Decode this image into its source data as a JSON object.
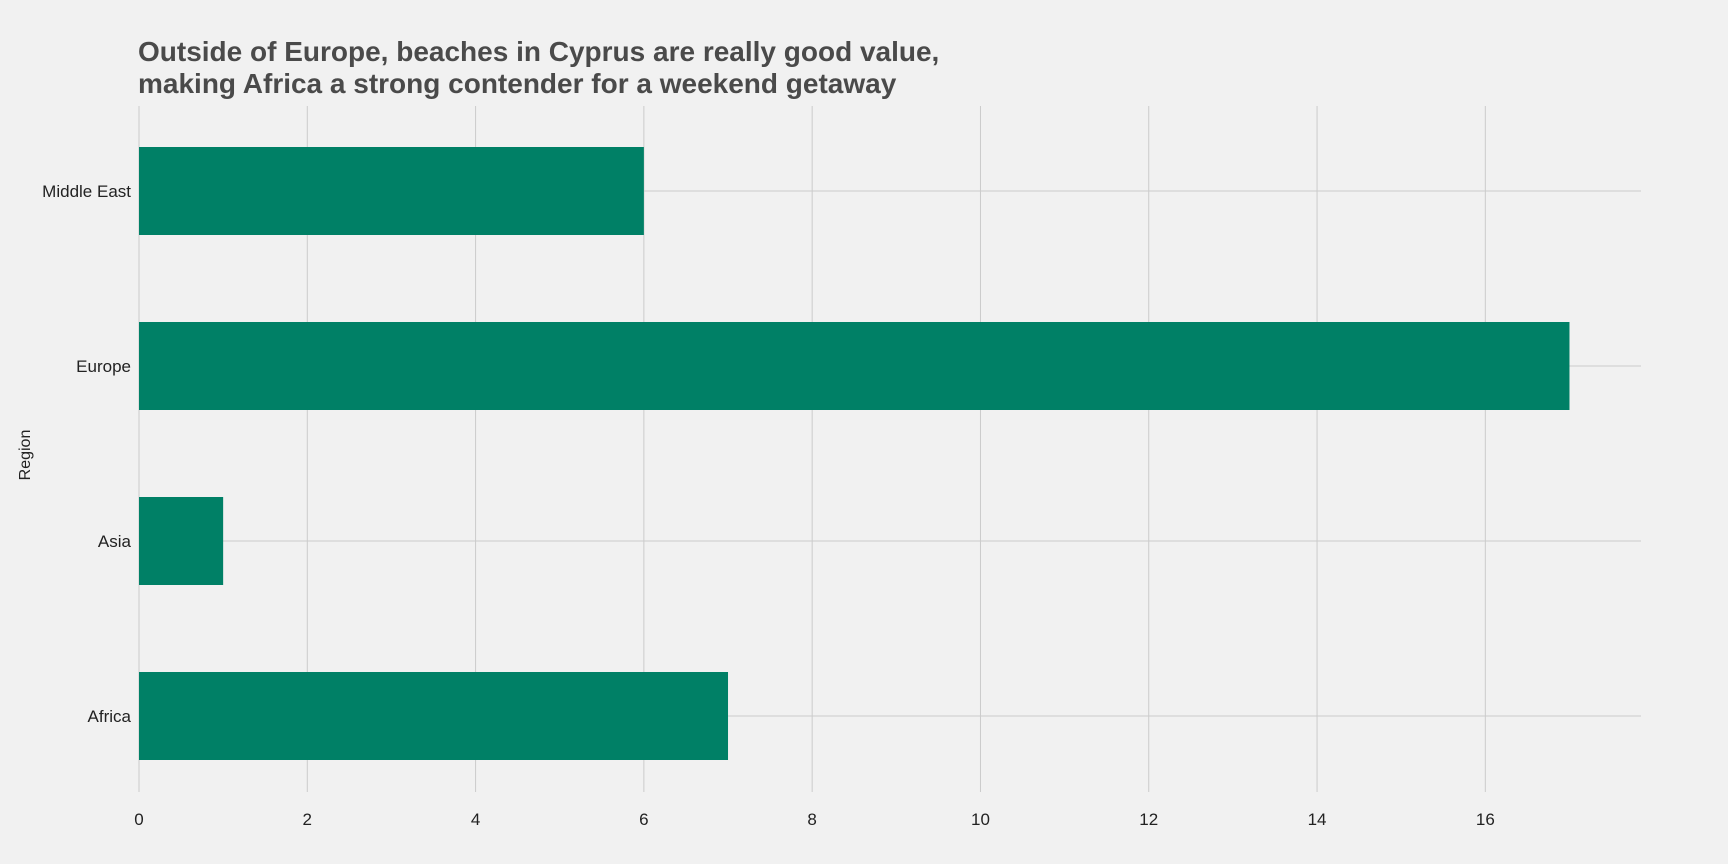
{
  "chart_data": {
    "type": "bar",
    "orientation": "horizontal",
    "title_lines": [
      "Outside of Europe, beaches in Cyprus are really good value,",
      "making Africa a strong contender for a weekend getaway"
    ],
    "xlabel": "",
    "ylabel": "Region",
    "categories": [
      "Africa",
      "Asia",
      "Europe",
      "Middle East"
    ],
    "values": [
      7,
      1,
      17,
      6
    ],
    "xlim": [
      0,
      17.85
    ],
    "xticks": [
      0,
      2,
      4,
      6,
      8,
      10,
      12,
      14,
      16
    ],
    "grid": true,
    "legend": "none",
    "colors": {
      "bar": "#008066",
      "background": "#f1f1f1",
      "grid": "#cbcbcb",
      "title": "#4a4a4a",
      "text": "#222222"
    }
  }
}
